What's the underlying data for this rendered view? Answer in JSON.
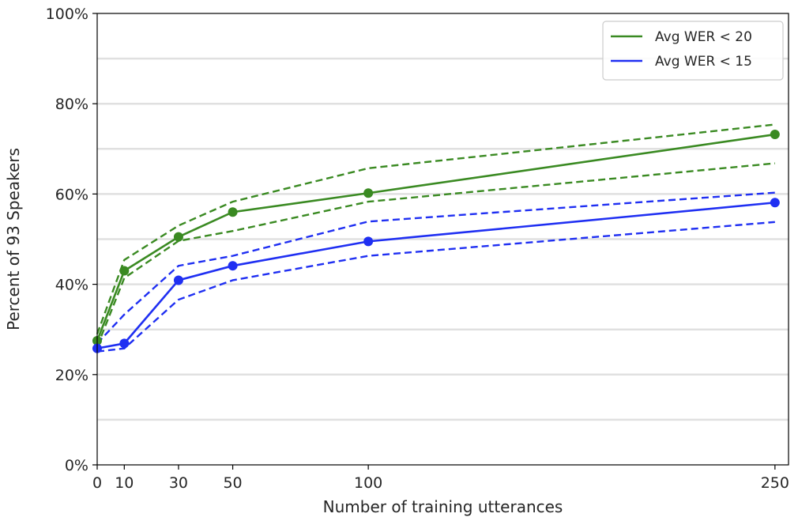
{
  "chart_data": {
    "type": "line",
    "title": "",
    "xlabel": "Number of training utterances",
    "ylabel": "Percent of 93 Speakers",
    "x": [
      0,
      10,
      30,
      50,
      100,
      250
    ],
    "x_tick_labels": [
      "0",
      "10",
      "30",
      "50",
      "100",
      "250"
    ],
    "xlim": [
      0,
      255
    ],
    "ylim": [
      0,
      100
    ],
    "y_ticks": [
      0,
      20,
      40,
      60,
      80,
      100
    ],
    "y_tick_labels": [
      "0%",
      "20%",
      "40%",
      "60%",
      "80%",
      "100%"
    ],
    "y_minor_gridlines": [
      10,
      30,
      50,
      70,
      90
    ],
    "grid": "horizontal",
    "legend_position": "top-right",
    "series": [
      {
        "name": "Avg WER < 20",
        "color": "#3a8a22",
        "values": [
          27.5,
          43.0,
          50.5,
          56.0,
          60.2,
          73.2
        ],
        "upper": [
          29.0,
          45.4,
          53.0,
          58.3,
          65.7,
          75.4
        ],
        "lower": [
          26.2,
          41.4,
          49.6,
          51.8,
          58.3,
          66.8
        ]
      },
      {
        "name": "Avg WER < 15",
        "color": "#1f2ff2",
        "values": [
          25.8,
          26.9,
          40.9,
          44.1,
          49.5,
          58.1
        ],
        "upper": [
          26.9,
          33.3,
          44.1,
          46.3,
          53.9,
          60.3
        ],
        "lower": [
          25.1,
          25.8,
          36.6,
          40.9,
          46.3,
          53.8
        ]
      }
    ]
  }
}
